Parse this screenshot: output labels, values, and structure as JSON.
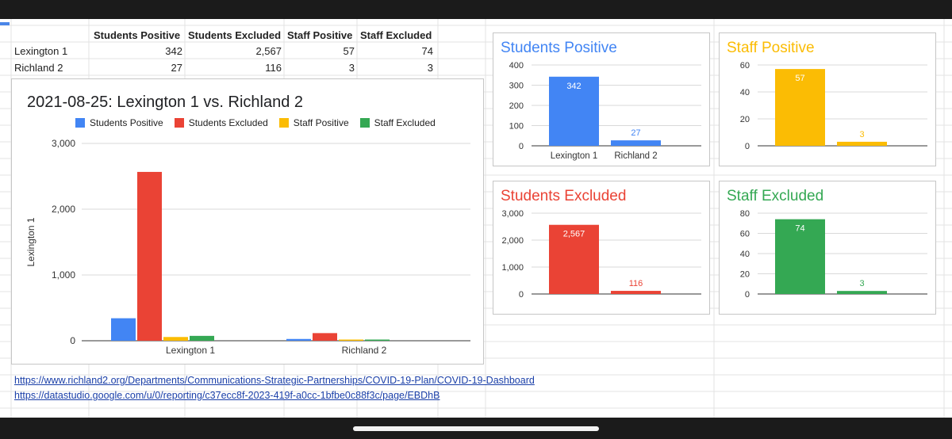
{
  "spreadsheet": {
    "headers": [
      "Students Positive",
      "Students Excluded",
      "Staff Positive",
      "Staff Excluded"
    ],
    "rows": [
      {
        "label": "Lexington 1",
        "values": [
          "342",
          "2,567",
          "57",
          "74"
        ]
      },
      {
        "label": "Richland 2",
        "values": [
          "27",
          "116",
          "3",
          "3"
        ]
      }
    ]
  },
  "links": [
    "https://www.richland2.org/Departments/Communications-Strategic-Partnerships/COVID-19-Plan/COVID-19-Dashboard",
    "https://datastudio.google.com/u/0/reporting/c37ecc8f-2023-419f-a0cc-1bfbe0c88f3c/page/EBDhB"
  ],
  "colors": {
    "students_positive": "#4285f4",
    "students_excluded": "#ea4335",
    "staff_positive": "#fbbc04",
    "staff_excluded": "#34a853"
  },
  "chart_data": [
    {
      "id": "main",
      "type": "bar",
      "title": "2021-08-25: Lexington 1 vs. Richland 2",
      "categories": [
        "Lexington 1",
        "Richland 2"
      ],
      "series": [
        {
          "name": "Students Positive",
          "values": [
            342,
            27
          ]
        },
        {
          "name": "Students Excluded",
          "values": [
            2567,
            116
          ]
        },
        {
          "name": "Staff Positive",
          "values": [
            57,
            3
          ]
        },
        {
          "name": "Staff Excluded",
          "values": [
            74,
            3
          ]
        }
      ],
      "ylabel": "Lexington 1",
      "ylim": [
        0,
        3000
      ],
      "yticks": [
        0,
        1000,
        2000,
        3000
      ],
      "ytick_labels": [
        "0",
        "1,000",
        "2,000",
        "3,000"
      ],
      "legend": "top"
    },
    {
      "id": "students-positive",
      "type": "bar",
      "title": "Students Positive",
      "categories": [
        "Lexington 1",
        "Richland 2"
      ],
      "values": [
        342,
        27
      ],
      "data_labels": [
        "342",
        "27"
      ],
      "ylim": [
        0,
        400
      ],
      "yticks": [
        0,
        100,
        200,
        300,
        400
      ],
      "ytick_labels": [
        "0",
        "100",
        "200",
        "300",
        "400"
      ],
      "show_category_labels": true
    },
    {
      "id": "staff-positive",
      "type": "bar",
      "title": "Staff Positive",
      "categories": [
        "Lexington 1",
        "Richland 2"
      ],
      "values": [
        57,
        3
      ],
      "data_labels": [
        "57",
        "3"
      ],
      "ylim": [
        0,
        60
      ],
      "yticks": [
        0,
        20,
        40,
        60
      ],
      "ytick_labels": [
        "0",
        "20",
        "40",
        "60"
      ],
      "show_category_labels": false
    },
    {
      "id": "students-excluded",
      "type": "bar",
      "title": "Students Excluded",
      "categories": [
        "Lexington 1",
        "Richland 2"
      ],
      "values": [
        2567,
        116
      ],
      "data_labels": [
        "2,567",
        "116"
      ],
      "ylim": [
        0,
        3000
      ],
      "yticks": [
        0,
        1000,
        2000,
        3000
      ],
      "ytick_labels": [
        "0",
        "1,000",
        "2,000",
        "3,000"
      ],
      "show_category_labels": false
    },
    {
      "id": "staff-excluded",
      "type": "bar",
      "title": "Staff Excluded",
      "categories": [
        "Lexington 1",
        "Richland 2"
      ],
      "values": [
        74,
        3
      ],
      "data_labels": [
        "74",
        "3"
      ],
      "ylim": [
        0,
        80
      ],
      "yticks": [
        0,
        20,
        40,
        60,
        80
      ],
      "ytick_labels": [
        "0",
        "20",
        "40",
        "60",
        "80"
      ],
      "show_category_labels": false
    }
  ]
}
